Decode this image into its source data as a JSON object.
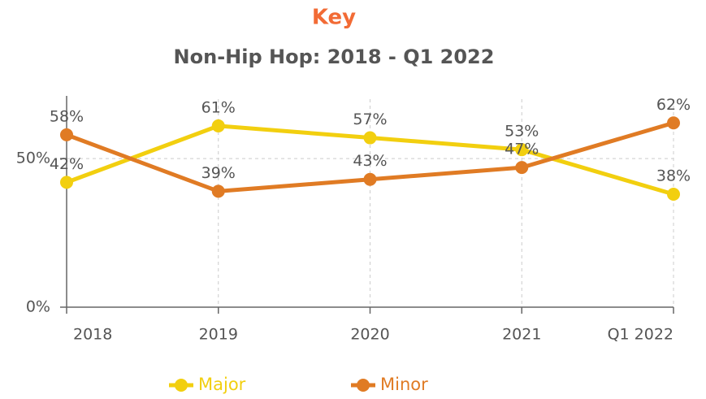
{
  "chart_data": {
    "type": "line",
    "title": "Key",
    "subtitle": "Non-Hip Hop: 2018 - Q1 2022",
    "categories": [
      "2018",
      "2019",
      "2020",
      "2021",
      "Q1 2022"
    ],
    "series": [
      {
        "name": "Major",
        "color": "#f2cf0f",
        "values": [
          42,
          61,
          57,
          53,
          38
        ],
        "value_labels": [
          "42%",
          "61%",
          "57%",
          "53%",
          "38%"
        ]
      },
      {
        "name": "Minor",
        "color": "#e07b24",
        "values": [
          58,
          39,
          43,
          47,
          62
        ],
        "value_labels": [
          "58%",
          "39%",
          "43%",
          "47%",
          "62%"
        ]
      }
    ],
    "ylim": [
      0,
      70
    ],
    "yticks": [
      {
        "value": 0,
        "label": "0%"
      },
      {
        "value": 50,
        "label": "50%"
      }
    ],
    "grid": true,
    "legend": "bottom"
  }
}
